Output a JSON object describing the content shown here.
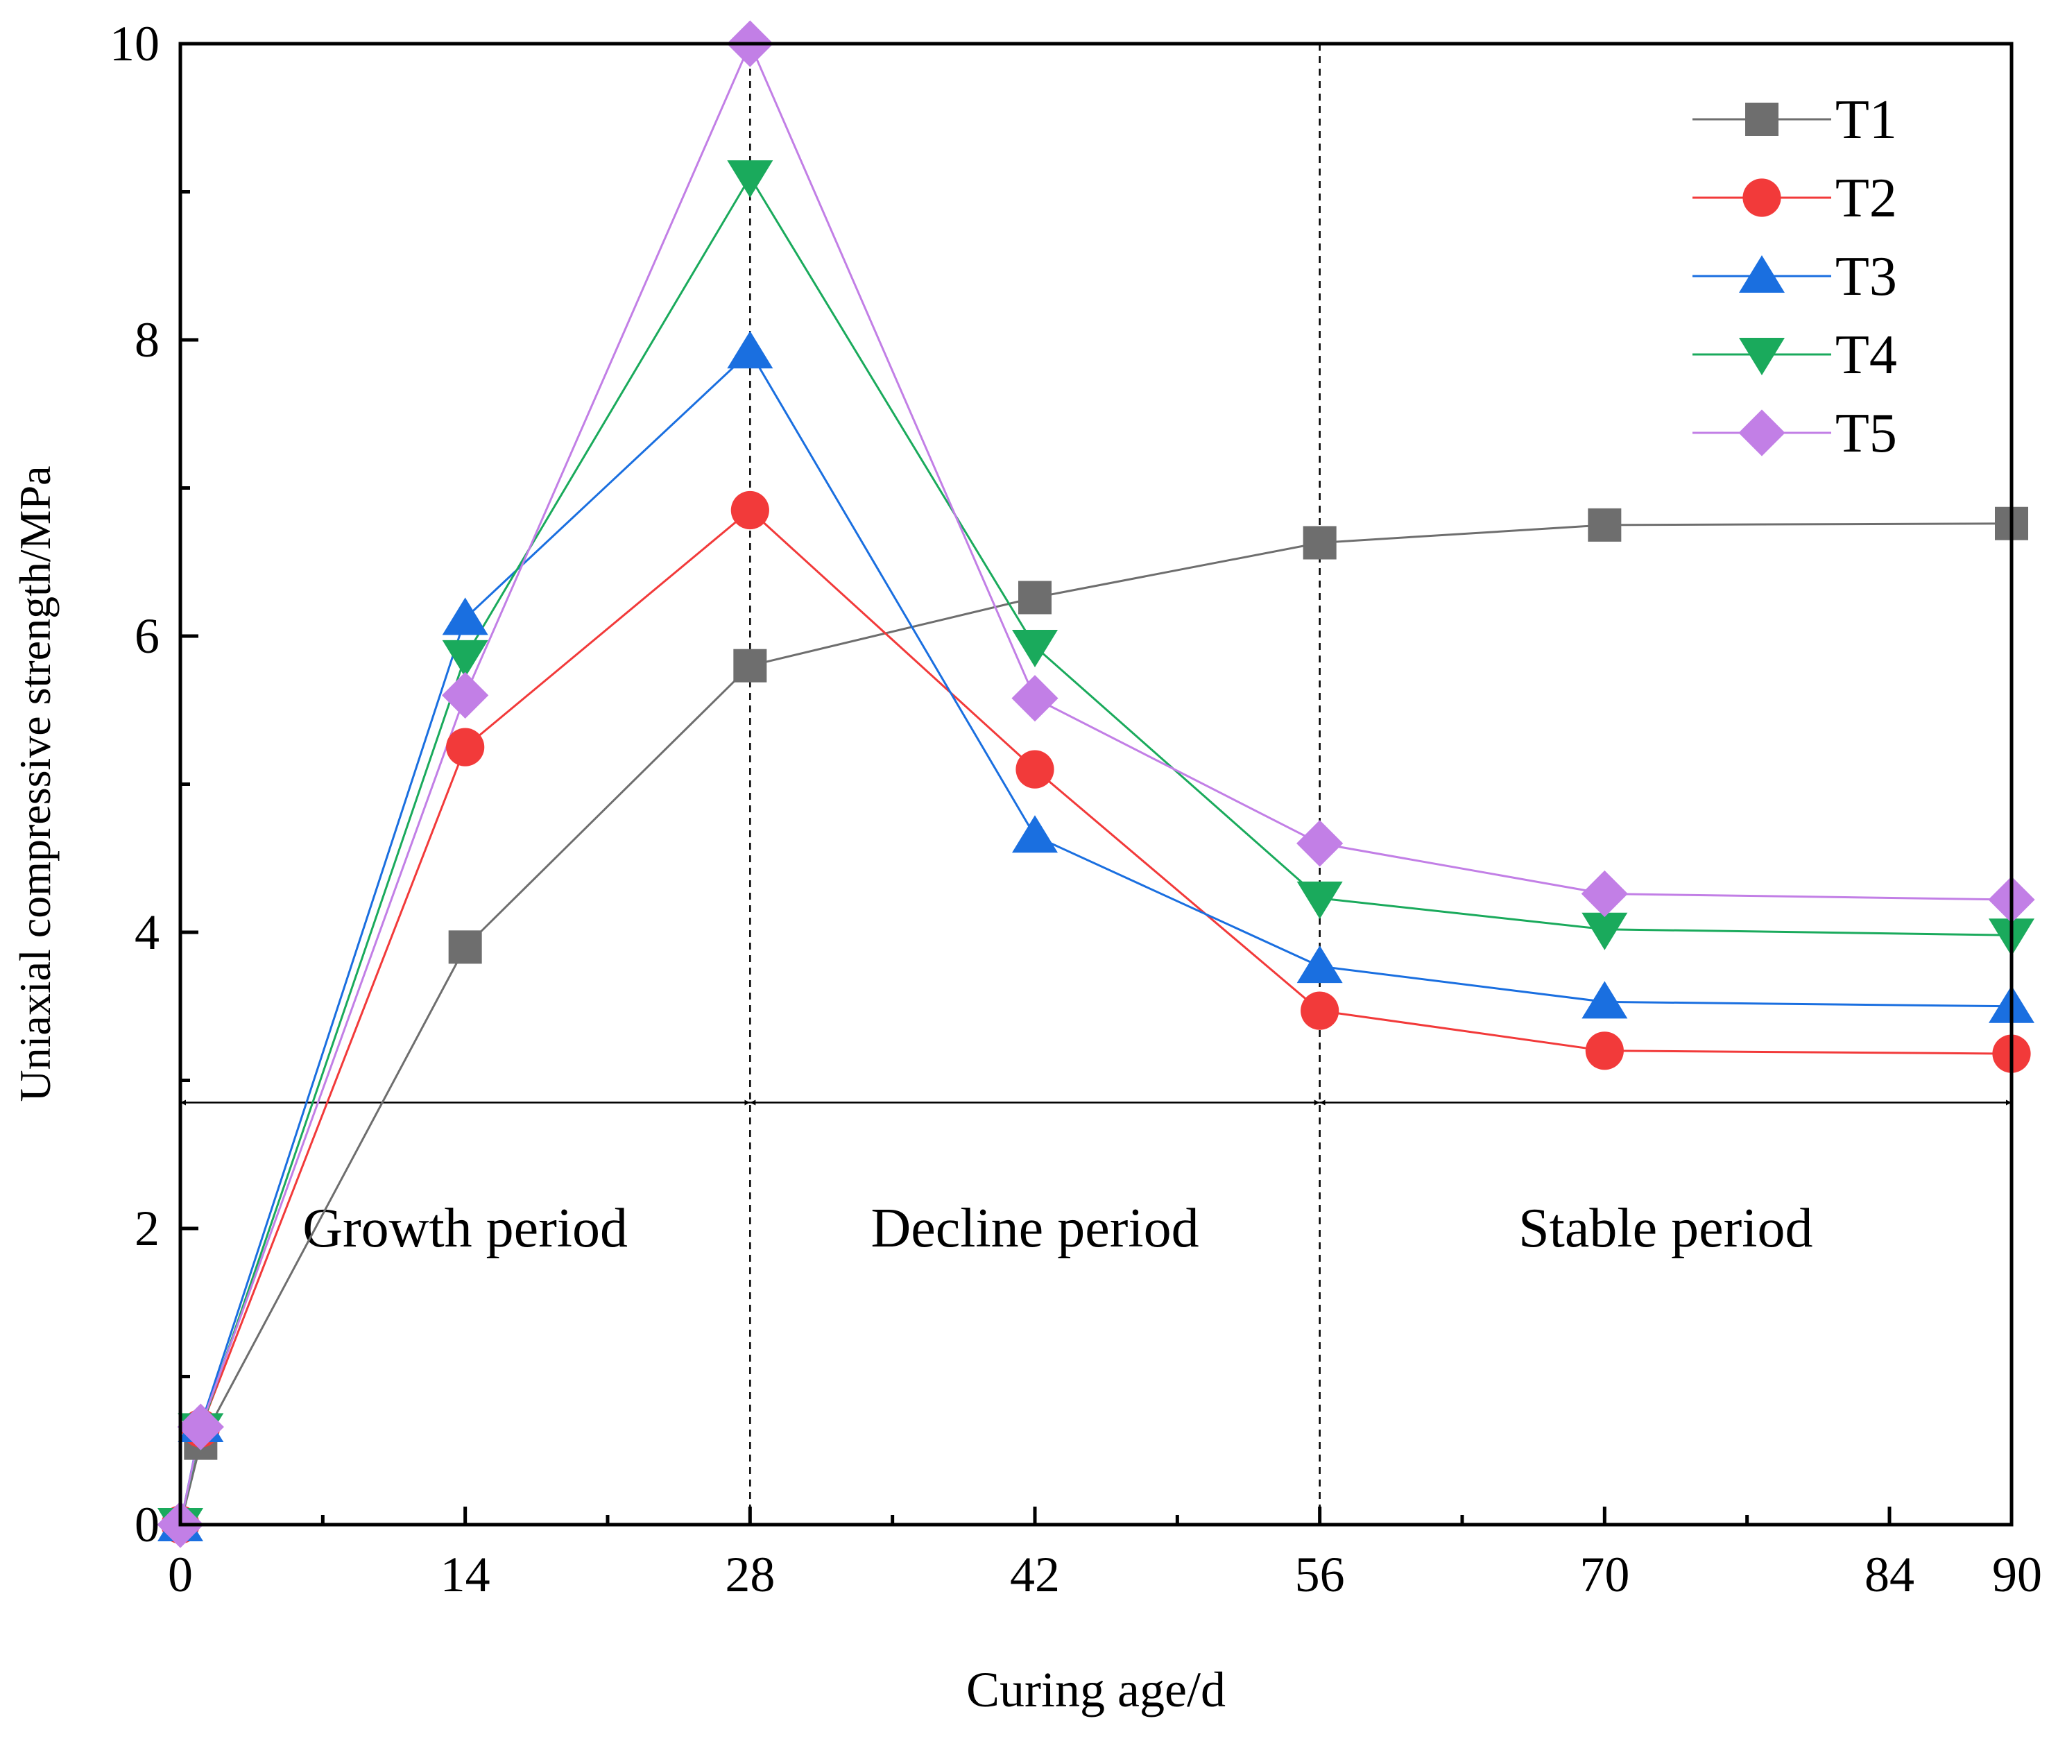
{
  "chart_data": {
    "type": "line",
    "xlabel": "Curing age/d",
    "ylabel": "Uniaxial compressive strength/MPa",
    "xlim": [
      0,
      90
    ],
    "ylim": [
      0,
      10
    ],
    "x_ticks": [
      0,
      14,
      28,
      42,
      56,
      70,
      84,
      90
    ],
    "y_ticks": [
      0,
      2,
      4,
      6,
      8,
      10
    ],
    "grid": false,
    "legend_position": "top-right",
    "x": [
      0,
      1,
      14,
      28,
      42,
      56,
      70,
      90
    ],
    "series": [
      {
        "name": "T1",
        "marker": "square",
        "color": "#6e6e6e",
        "values": [
          0,
          0.55,
          3.9,
          5.8,
          6.26,
          6.63,
          6.75,
          6.76
        ]
      },
      {
        "name": "T2",
        "marker": "circle",
        "color": "#f23a3a",
        "values": [
          0,
          0.65,
          5.25,
          6.85,
          5.1,
          3.47,
          3.2,
          3.18
        ]
      },
      {
        "name": "T3",
        "marker": "triangle-up",
        "color": "#1a6fe0",
        "values": [
          0,
          0.67,
          6.12,
          7.92,
          4.65,
          3.77,
          3.53,
          3.5
        ]
      },
      {
        "name": "T4",
        "marker": "triangle-down",
        "color": "#1aaa5c",
        "values": [
          0,
          0.64,
          5.86,
          9.1,
          5.93,
          4.23,
          4.02,
          3.98
        ]
      },
      {
        "name": "T5",
        "marker": "diamond",
        "color": "#c27fe6",
        "values": [
          0,
          0.66,
          5.6,
          10.0,
          5.58,
          4.6,
          4.26,
          4.22
        ]
      }
    ],
    "period_lines_x": [
      28,
      56
    ],
    "period_arrow_y": 2.85,
    "periods": [
      {
        "label": "Growth period",
        "x_start": 0,
        "x_end": 28
      },
      {
        "label": "Decline period",
        "x_start": 28,
        "x_end": 56
      },
      {
        "label": "Stable period",
        "x_start": 56,
        "x_end": 90
      }
    ]
  }
}
